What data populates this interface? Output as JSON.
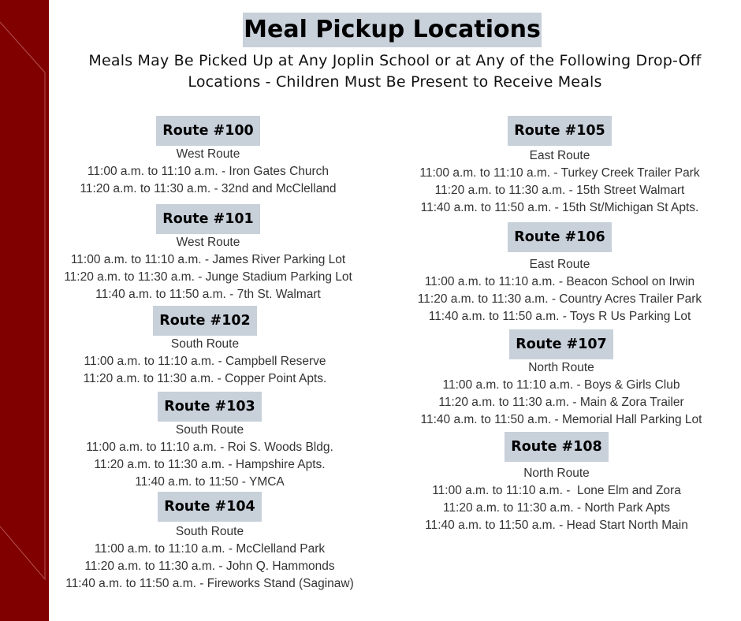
{
  "title": "Meal Pickup Locations",
  "subtitle_lines": [
    "Meals May Be Picked Up at Any Joplin School or at Any of the Following Drop-Off",
    "Locations - Children Must Be Present to Receive Meals"
  ],
  "colors": {
    "sidebar": "#800000",
    "header_bg": "#c8d0da"
  },
  "routes": [
    {
      "name": "Route #100",
      "area": "West Route",
      "stops": [
        "11:00 a.m. to 11:10 a.m. - Iron Gates Church",
        "11:20 a.m. to 11:30 a.m. - 32nd and McClelland"
      ]
    },
    {
      "name": "Route #101",
      "area": "West Route",
      "stops": [
        "11:00 a.m. to 11:10 a.m. - James River Parking Lot",
        "11:20 a.m. to 11:30 a.m. - Junge Stadium Parking Lot",
        "11:40 a.m. to 11:50 a.m. - 7th St. Walmart"
      ]
    },
    {
      "name": "Route #102",
      "area": "South Route",
      "stops": [
        "11:00 a.m. to 11:10 a.m. - Campbell Reserve",
        "11:20 a.m. to 11:30 a.m. - Copper Point Apts."
      ]
    },
    {
      "name": "Route #103",
      "area": "South Route",
      "stops": [
        "11:00 a.m. to 11:10 a.m. - Roi S. Woods Bldg.",
        "11:20 a.m. to 11:30 a.m. - Hampshire Apts.",
        "11:40 a.m. to 11:50 - YMCA"
      ]
    },
    {
      "name": "Route #104",
      "area": "South Route",
      "stops": [
        "11:00 a.m. to 11:10 a.m. - McClelland Park",
        "11:20 a.m. to 11:30 a.m. - John Q. Hammonds",
        "11:40 a.m. to 11:50 a.m. - Fireworks Stand (Saginaw)"
      ]
    },
    {
      "name": "Route #105",
      "area": "East Route",
      "stops": [
        "11:00 a.m. to 11:10 a.m. - Turkey Creek Trailer Park",
        "11:20 a.m. to 11:30 a.m. - 15th Street Walmart",
        "11:40 a.m. to 11:50 a.m. - 15th St/Michigan St Apts."
      ]
    },
    {
      "name": "Route #106",
      "area": "East Route",
      "stops": [
        "11:00 a.m. to 11:10 a.m. - Beacon School on Irwin",
        "11:20 a.m. to 11:30 a.m. - Country Acres Trailer Park",
        "11:40 a.m. to 11:50 a.m. - Toys R Us Parking Lot"
      ]
    },
    {
      "name": "Route #107",
      "area": "North Route",
      "stops": [
        "11:00 a.m. to 11:10 a.m. - Boys & Girls Club",
        "11:20 a.m. to 11:30 a.m. - Main & Zora Trailer",
        "11:40 a.m. to 11:50 a.m. - Memorial Hall Parking Lot"
      ]
    },
    {
      "name": "Route #108",
      "area": "North Route",
      "stops": [
        "11:00 a.m. to 11:10 a.m. -  Lone Elm and Zora",
        "11:20 a.m. to 11:30 a.m. - North Park Apts",
        "11:40 a.m. to 11:50 a.m. - Head Start North Main"
      ]
    }
  ]
}
